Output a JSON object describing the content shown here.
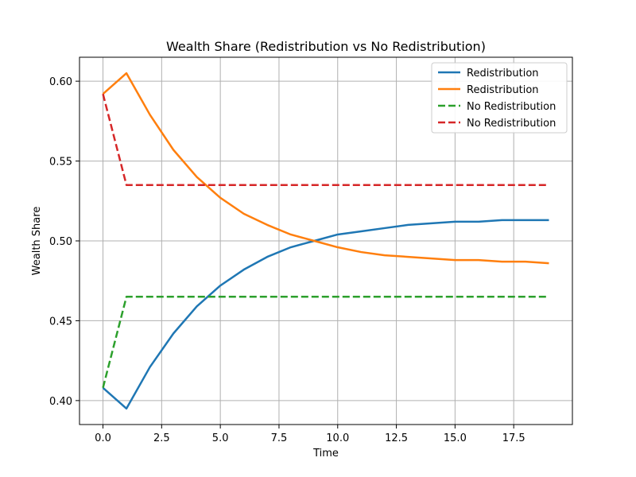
{
  "chart_data": {
    "type": "line",
    "title": "Wealth Share (Redistribution vs No Redistribution)",
    "xlabel": "Time",
    "ylabel": "Wealth Share",
    "xlim": [
      -1.0,
      20.0
    ],
    "ylim": [
      0.385,
      0.615
    ],
    "xticks": [
      0.0,
      2.5,
      5.0,
      7.5,
      10.0,
      12.5,
      15.0,
      17.5
    ],
    "xtick_labels": [
      "0.0",
      "2.5",
      "5.0",
      "7.5",
      "10.0",
      "12.5",
      "15.0",
      "17.5"
    ],
    "yticks": [
      0.4,
      0.45,
      0.5,
      0.55,
      0.6
    ],
    "ytick_labels": [
      "0.40",
      "0.45",
      "0.50",
      "0.55",
      "0.60"
    ],
    "grid": true,
    "legend_position": "top-right",
    "x": [
      0,
      1,
      2,
      3,
      4,
      5,
      6,
      7,
      8,
      9,
      10,
      11,
      12,
      13,
      14,
      15,
      16,
      17,
      18,
      19
    ],
    "series": [
      {
        "name": "Redistribution",
        "color": "#1f77b4",
        "style": "solid",
        "values": [
          0.408,
          0.395,
          0.421,
          0.442,
          0.459,
          0.472,
          0.482,
          0.49,
          0.496,
          0.5,
          0.504,
          0.506,
          0.508,
          0.51,
          0.511,
          0.512,
          0.512,
          0.513,
          0.513,
          0.513
        ]
      },
      {
        "name": "Redistribution",
        "color": "#ff7f0e",
        "style": "solid",
        "values": [
          0.592,
          0.605,
          0.579,
          0.557,
          0.54,
          0.527,
          0.517,
          0.51,
          0.504,
          0.5,
          0.496,
          0.493,
          0.491,
          0.49,
          0.489,
          0.488,
          0.488,
          0.487,
          0.487,
          0.486
        ]
      },
      {
        "name": "No Redistribution",
        "color": "#2ca02c",
        "style": "dashed",
        "values": [
          0.408,
          0.465,
          0.465,
          0.465,
          0.465,
          0.465,
          0.465,
          0.465,
          0.465,
          0.465,
          0.465,
          0.465,
          0.465,
          0.465,
          0.465,
          0.465,
          0.465,
          0.465,
          0.465,
          0.465
        ]
      },
      {
        "name": "No Redistribution",
        "color": "#d62728",
        "style": "dashed",
        "values": [
          0.592,
          0.535,
          0.535,
          0.535,
          0.535,
          0.535,
          0.535,
          0.535,
          0.535,
          0.535,
          0.535,
          0.535,
          0.535,
          0.535,
          0.535,
          0.535,
          0.535,
          0.535,
          0.535,
          0.535
        ]
      }
    ]
  }
}
